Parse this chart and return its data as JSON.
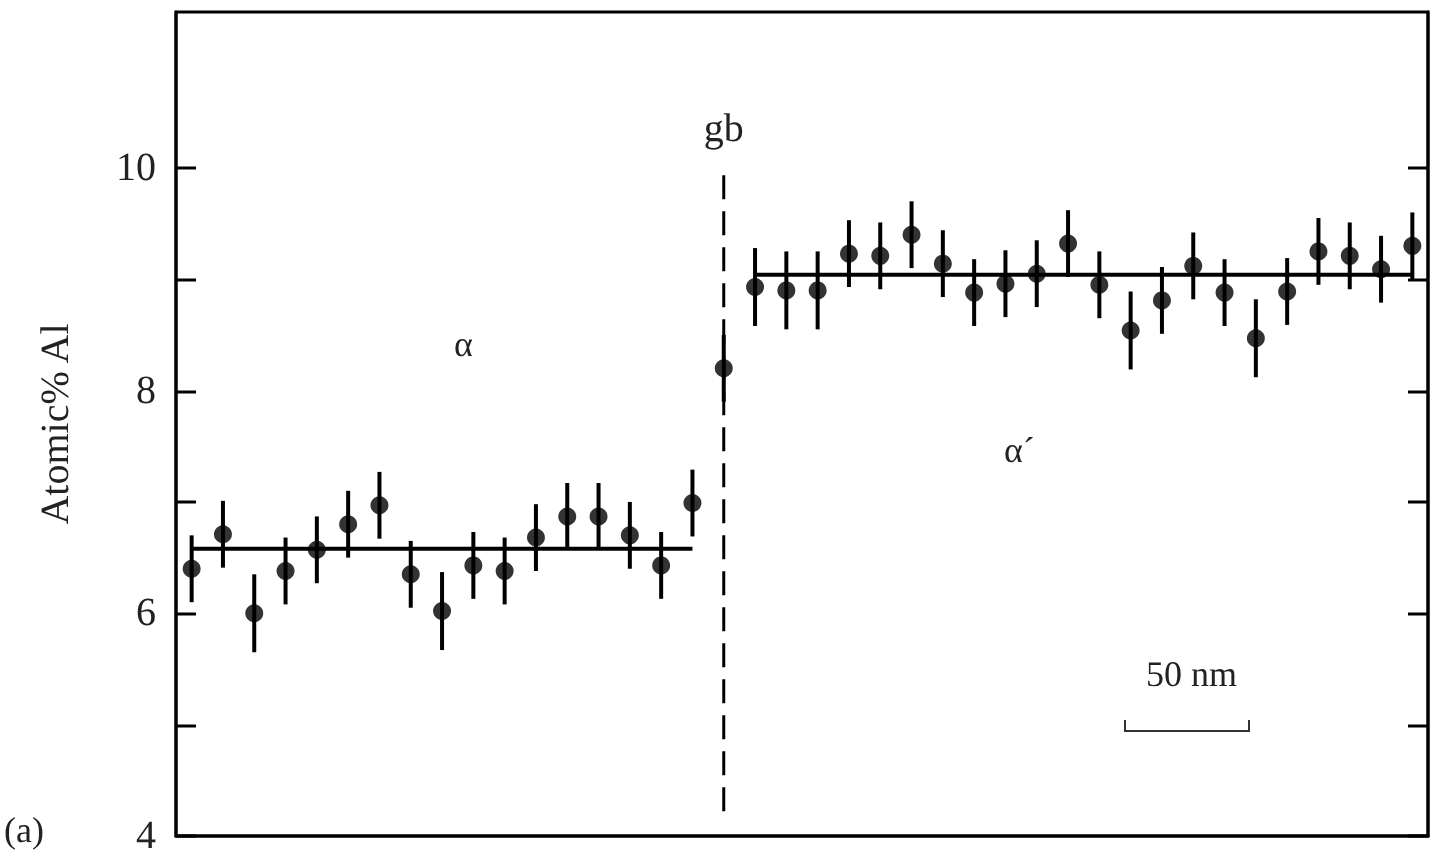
{
  "chart_data": {
    "type": "scatter",
    "ylabel": "Atomic% Al",
    "categories": [
      null,
      null,
      null,
      null,
      null,
      null,
      null,
      null,
      null,
      null,
      null,
      null,
      null,
      null,
      null,
      null,
      null,
      null,
      null,
      null,
      null,
      null,
      null,
      null,
      null,
      null,
      null,
      null,
      null,
      null,
      null,
      null,
      null,
      null,
      null,
      null,
      null,
      null,
      null,
      null
    ],
    "ylim": [
      4,
      11.4
    ],
    "yticks": [
      4,
      {
        "value": 5,
        "label": null
      },
      6,
      {
        "value": 7,
        "label": null
      },
      8,
      {
        "value": 9,
        "label": null
      },
      10
    ],
    "grid": false,
    "marker": "circle",
    "series": [
      {
        "color": "#000000",
        "values": [
          6.4,
          6.71,
          6.0,
          6.38,
          6.57,
          6.8,
          6.97,
          6.35,
          6.02,
          6.43,
          6.38,
          6.68,
          6.87,
          6.87,
          6.7,
          6.43,
          6.99,
          8.2,
          8.93,
          8.9,
          8.9,
          9.23,
          9.21,
          9.4,
          9.14,
          8.88,
          8.96,
          9.05,
          9.32,
          8.95,
          8.54,
          8.81,
          9.12,
          8.88,
          8.47,
          8.89,
          9.25,
          9.21,
          9.09,
          9.3
        ],
        "errors": [
          0.3,
          0.3,
          0.35,
          0.3,
          0.3,
          0.3,
          0.3,
          0.3,
          0.35,
          0.3,
          0.3,
          0.3,
          0.3,
          0.3,
          0.3,
          0.3,
          0.3,
          0.3,
          0.35,
          0.35,
          0.35,
          0.3,
          0.3,
          0.3,
          0.3,
          0.3,
          0.3,
          0.3,
          0.3,
          0.3,
          0.35,
          0.3,
          0.3,
          0.3,
          0.35,
          0.3,
          0.3,
          0.3,
          0.3,
          0.3
        ]
      },
      {
        "type": "line",
        "color": "#000000",
        "marker": "none",
        "line_style": "solid",
        "values": [
          6.58,
          6.58,
          6.58,
          6.58,
          6.58,
          6.58,
          6.58,
          6.58,
          6.58,
          6.58,
          6.58,
          6.58,
          6.58,
          6.58,
          6.58,
          6.58,
          6.58,
          null,
          null,
          null,
          null,
          null,
          null,
          null,
          null,
          null,
          null,
          null,
          null,
          null,
          null,
          null,
          null,
          null,
          null,
          null,
          null,
          null,
          null,
          null
        ]
      },
      {
        "type": "line",
        "color": "#000000",
        "marker": "none",
        "line_style": "solid",
        "values": [
          null,
          null,
          null,
          null,
          null,
          null,
          null,
          null,
          null,
          null,
          null,
          null,
          null,
          null,
          null,
          null,
          null,
          null,
          9.04,
          9.04,
          9.04,
          9.04,
          9.04,
          9.04,
          9.04,
          9.04,
          9.04,
          9.04,
          9.04,
          9.04,
          9.04,
          9.04,
          9.04,
          9.04,
          9.04,
          9.04,
          9.04,
          9.04,
          9.04,
          9.04
        ]
      }
    ],
    "ref_lines": [
      {
        "axis": "x",
        "label": "gb",
        "line_style": "dashed",
        "color": "#000000"
      }
    ],
    "annotations": [
      "α",
      "α´",
      "50 nm",
      "(a)"
    ]
  }
}
